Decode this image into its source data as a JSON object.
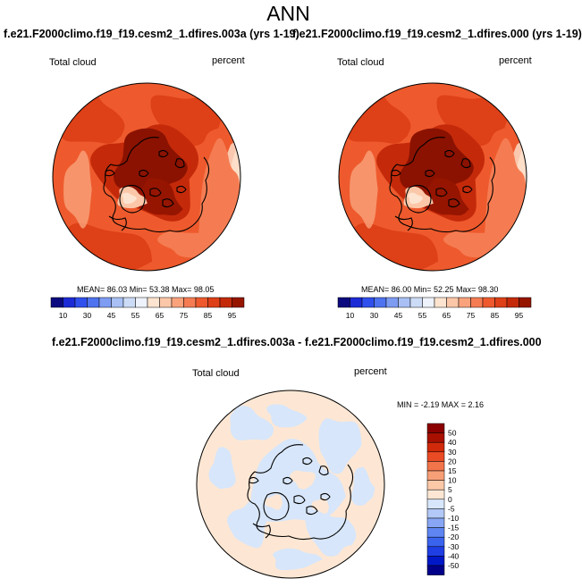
{
  "page_title": "ANN",
  "palettes": {
    "abs_colors": [
      "#0b0a7e",
      "#1c2bd6",
      "#3050ee",
      "#4f73f0",
      "#7d9cf2",
      "#a8c0f4",
      "#cddcf6",
      "#eef2fa",
      "#fde4d0",
      "#fcc7a8",
      "#f9a27c",
      "#f57c52",
      "#ee5a2d",
      "#de4017",
      "#c42a0a",
      "#961500"
    ],
    "abs_ticks": [
      "10",
      "30",
      "45",
      "55",
      "65",
      "75",
      "85",
      "95"
    ],
    "diff_colors": [
      "#00008a",
      "#0018c8",
      "#1f3ee3",
      "#3a63ee",
      "#5f85f2",
      "#88a6f4",
      "#b2c8f6",
      "#d7e6fa",
      "#fde7d4",
      "#fbc8a8",
      "#f79f77",
      "#f2744a",
      "#e94b24",
      "#d02a0a",
      "#a81000",
      "#8a0000"
    ],
    "diff_ticks": [
      "-50",
      "-40",
      "-30",
      "-20",
      "-15",
      "-10",
      "-5",
      "0",
      "5",
      "10",
      "15",
      "20",
      "30",
      "40",
      "50"
    ]
  },
  "panels": {
    "left": {
      "title": "f.e21.F2000climo.f19_f19.cesm2_1.dfires.003a (yrs 1-19)",
      "variable": "Total cloud",
      "units": "percent",
      "stats": "MEAN=  86.03  Min=  53.38  Max=  98.05"
    },
    "right": {
      "title": "f.e21.F2000climo.f19_f19.cesm2_1.dfires.000 (yrs 1-19)",
      "variable": "Total cloud",
      "units": "percent",
      "stats": "MEAN=  86.00  Min=  52.25  Max=  98.30"
    },
    "diff": {
      "title": "f.e21.F2000climo.f19_f19.cesm2_1.dfires.003a - f.e21.F2000climo.f19_f19.cesm2_1.dfires.000",
      "variable": "Total cloud",
      "units": "percent",
      "stats": "MIN =  -2.19  MAX =   2.16"
    }
  },
  "chart_data": [
    {
      "type": "heatmap",
      "projection": "polar stereographic (north)",
      "title": "f.e21.F2000climo.f19_f19.cesm2_1.dfires.003a (yrs 1-19)",
      "variable": "Total cloud",
      "units": "percent",
      "mean": 86.03,
      "min": 53.38,
      "max": 98.05,
      "colorbar_ticks": [
        10,
        30,
        45,
        55,
        65,
        75,
        85,
        95
      ]
    },
    {
      "type": "heatmap",
      "projection": "polar stereographic (north)",
      "title": "f.e21.F2000climo.f19_f19.cesm2_1.dfires.000 (yrs 1-19)",
      "variable": "Total cloud",
      "units": "percent",
      "mean": 86.0,
      "min": 52.25,
      "max": 98.3,
      "colorbar_ticks": [
        10,
        30,
        45,
        55,
        65,
        75,
        85,
        95
      ]
    },
    {
      "type": "heatmap",
      "projection": "polar stereographic (north)",
      "title": "f.e21.F2000climo.f19_f19.cesm2_1.dfires.003a - f.e21.F2000climo.f19_f19.cesm2_1.dfires.000",
      "variable": "Total cloud",
      "units": "percent",
      "min": -2.19,
      "max": 2.16,
      "colorbar_ticks": [
        -50,
        -40,
        -30,
        -20,
        -15,
        -10,
        -5,
        0,
        5,
        10,
        15,
        20,
        30,
        40,
        50
      ]
    }
  ]
}
